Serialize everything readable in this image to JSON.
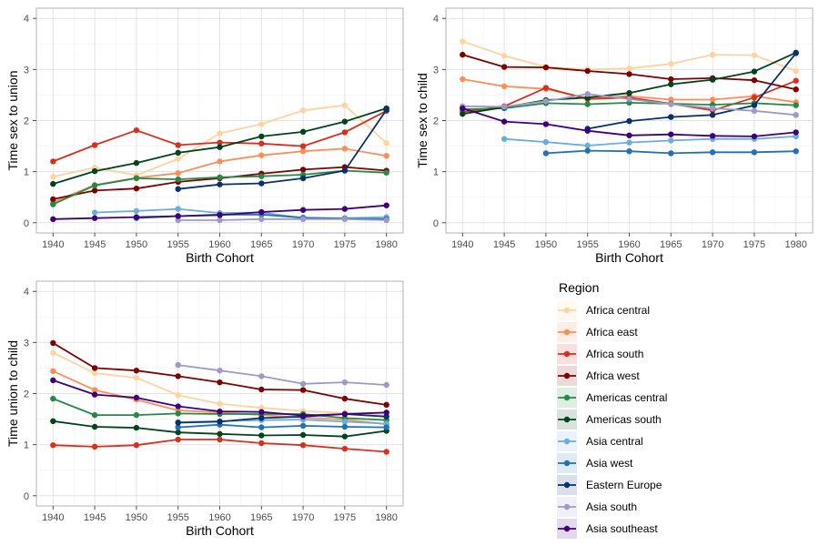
{
  "legend": {
    "title": "Region",
    "items": [
      {
        "name": "Africa central",
        "color": "#fdd49e"
      },
      {
        "name": "Africa east",
        "color": "#fc8d59"
      },
      {
        "name": "Africa south",
        "color": "#d7301f"
      },
      {
        "name": "Africa west",
        "color": "#7f0000"
      },
      {
        "name": "Americas central",
        "color": "#238b45"
      },
      {
        "name": "Americas south",
        "color": "#00441b"
      },
      {
        "name": "Asia central",
        "color": "#6baed6"
      },
      {
        "name": "Asia west",
        "color": "#2171b5"
      },
      {
        "name": "Eastern Europe",
        "color": "#08306b"
      },
      {
        "name": "Asia south",
        "color": "#9e9ac8"
      },
      {
        "name": "Asia southeast",
        "color": "#3f007d"
      }
    ]
  },
  "chart_data": [
    {
      "type": "line",
      "xlabel": "Birth Cohort",
      "ylabel": "Time sex to union",
      "xlim": [
        1938,
        1982
      ],
      "ylim": [
        -0.2,
        4.2
      ],
      "xticks": [
        "1940",
        "1945",
        "1950",
        "1955",
        "1960",
        "1965",
        "1970",
        "1975",
        "1980"
      ],
      "yticks": [
        "0",
        "1",
        "2",
        "3",
        "4"
      ],
      "grid": true,
      "series": [
        {
          "name": "Africa central",
          "x": [
            1940,
            1945,
            1950,
            1955,
            1960,
            1965,
            1970,
            1975,
            1980
          ],
          "y": [
            0.9,
            1.08,
            0.93,
            1.25,
            1.75,
            1.93,
            2.2,
            2.3,
            1.56
          ]
        },
        {
          "name": "Africa east",
          "x": [
            1940,
            1945,
            1950,
            1955,
            1960,
            1965,
            1970,
            1975,
            1980
          ],
          "y": [
            0.4,
            0.74,
            0.88,
            0.97,
            1.2,
            1.32,
            1.4,
            1.45,
            1.31
          ]
        },
        {
          "name": "Africa south",
          "x": [
            1940,
            1945,
            1950,
            1955,
            1960,
            1965,
            1970,
            1975,
            1980
          ],
          "y": [
            1.2,
            1.52,
            1.81,
            1.52,
            1.57,
            1.55,
            1.5,
            1.77,
            2.19
          ]
        },
        {
          "name": "Africa west",
          "x": [
            1940,
            1945,
            1950,
            1955,
            1960,
            1965,
            1970,
            1975,
            1980
          ],
          "y": [
            0.46,
            0.63,
            0.67,
            0.8,
            0.87,
            0.96,
            1.04,
            1.09,
            1.02
          ]
        },
        {
          "name": "Americas central",
          "x": [
            1940,
            1945,
            1950,
            1955,
            1960,
            1965,
            1970,
            1975,
            1980
          ],
          "y": [
            0.36,
            0.73,
            0.87,
            0.85,
            0.89,
            0.91,
            0.94,
            1.02,
            0.98
          ]
        },
        {
          "name": "Americas south",
          "x": [
            1940,
            1945,
            1950,
            1955,
            1960,
            1965,
            1970,
            1975,
            1980
          ],
          "y": [
            0.76,
            1.01,
            1.17,
            1.37,
            1.48,
            1.69,
            1.78,
            1.98,
            2.24
          ]
        },
        {
          "name": "Asia central",
          "x": [
            1945,
            1950,
            1955,
            1960,
            1965,
            1970,
            1975,
            1980
          ],
          "y": [
            0.2,
            0.23,
            0.27,
            0.19,
            0.2,
            0.09,
            0.09,
            0.11
          ]
        },
        {
          "name": "Asia west",
          "x": [
            1950,
            1955,
            1960,
            1965,
            1970,
            1975,
            1980
          ],
          "y": [
            0.09,
            0.13,
            0.16,
            0.16,
            0.1,
            0.08,
            0.07
          ]
        },
        {
          "name": "Eastern Europe",
          "x": [
            1955,
            1960,
            1965,
            1970,
            1975,
            1980
          ],
          "y": [
            0.66,
            0.75,
            0.77,
            0.87,
            1.02,
            2.21
          ]
        },
        {
          "name": "Asia south",
          "x": [
            1955,
            1960,
            1965,
            1970,
            1975,
            1980
          ],
          "y": [
            0.05,
            0.05,
            0.07,
            0.07,
            0.07,
            0.05
          ]
        },
        {
          "name": "Asia southeast",
          "x": [
            1940,
            1945,
            1950,
            1955,
            1960,
            1965,
            1970,
            1975,
            1980
          ],
          "y": [
            0.07,
            0.09,
            0.11,
            0.13,
            0.15,
            0.21,
            0.25,
            0.27,
            0.34
          ]
        }
      ]
    },
    {
      "type": "line",
      "xlabel": "Birth Cohort",
      "ylabel": "Time sex to child",
      "xlim": [
        1938,
        1982
      ],
      "ylim": [
        -0.2,
        4.2
      ],
      "xticks": [
        "1940",
        "1945",
        "1950",
        "1955",
        "1960",
        "1965",
        "1970",
        "1975",
        "1980"
      ],
      "yticks": [
        "0",
        "1",
        "2",
        "3",
        "4"
      ],
      "grid": true,
      "series": [
        {
          "name": "Africa central",
          "x": [
            1940,
            1945,
            1950,
            1955,
            1960,
            1965,
            1970,
            1975,
            1980
          ],
          "y": [
            3.55,
            3.27,
            3.05,
            3.0,
            3.02,
            3.11,
            3.29,
            3.28,
            2.97
          ]
        },
        {
          "name": "Africa east",
          "x": [
            1940,
            1945,
            1950,
            1955,
            1960,
            1965,
            1970,
            1975,
            1980
          ],
          "y": [
            2.81,
            2.67,
            2.62,
            2.44,
            2.48,
            2.41,
            2.41,
            2.48,
            2.36
          ]
        },
        {
          "name": "Africa south",
          "x": [
            1940,
            1945,
            1950,
            1955,
            1960,
            1965,
            1970,
            1975,
            1980
          ],
          "y": [
            2.17,
            2.28,
            2.64,
            2.42,
            2.45,
            2.33,
            2.2,
            2.45,
            2.78
          ]
        },
        {
          "name": "Africa west",
          "x": [
            1940,
            1945,
            1950,
            1955,
            1960,
            1965,
            1970,
            1975,
            1980
          ],
          "y": [
            3.29,
            3.05,
            3.04,
            2.97,
            2.91,
            2.81,
            2.83,
            2.79,
            2.61
          ]
        },
        {
          "name": "Americas central",
          "x": [
            1940,
            1945,
            1950,
            1955,
            1960,
            1965,
            1970,
            1975,
            1980
          ],
          "y": [
            2.22,
            2.24,
            2.34,
            2.32,
            2.35,
            2.33,
            2.31,
            2.34,
            2.3
          ]
        },
        {
          "name": "Americas south",
          "x": [
            1940,
            1945,
            1950,
            1955,
            1960,
            1965,
            1970,
            1975,
            1980
          ],
          "y": [
            2.13,
            2.26,
            2.4,
            2.45,
            2.54,
            2.71,
            2.8,
            2.96,
            3.33
          ]
        },
        {
          "name": "Asia central",
          "x": [
            1945,
            1950,
            1955,
            1960,
            1965,
            1970,
            1975,
            1980
          ],
          "y": [
            1.64,
            1.58,
            1.51,
            1.57,
            1.61,
            1.64,
            1.64,
            1.69
          ]
        },
        {
          "name": "Asia west",
          "x": [
            1950,
            1955,
            1960,
            1965,
            1970,
            1975,
            1980
          ],
          "y": [
            1.36,
            1.41,
            1.4,
            1.36,
            1.38,
            1.38,
            1.4
          ]
        },
        {
          "name": "Eastern Europe",
          "x": [
            1955,
            1960,
            1965,
            1970,
            1975,
            1980
          ],
          "y": [
            1.84,
            1.99,
            2.07,
            2.11,
            2.3,
            3.32
          ]
        },
        {
          "name": "Asia south",
          "x": [
            1940,
            1945,
            1950,
            1955,
            1960,
            1965,
            1970,
            1975,
            1980
          ],
          "y": [
            2.28,
            2.27,
            2.38,
            2.52,
            2.42,
            2.32,
            2.24,
            2.19,
            2.11
          ]
        },
        {
          "name": "Asia southeast",
          "x": [
            1940,
            1945,
            1950,
            1955,
            1960,
            1965,
            1970,
            1975,
            1980
          ],
          "y": [
            2.24,
            1.98,
            1.93,
            1.8,
            1.71,
            1.73,
            1.7,
            1.69,
            1.77
          ]
        }
      ]
    },
    {
      "type": "line",
      "xlabel": "Birth Cohort",
      "ylabel": "Time union to child",
      "xlim": [
        1938,
        1982
      ],
      "ylim": [
        -0.2,
        4.2
      ],
      "xticks": [
        "1940",
        "1945",
        "1950",
        "1955",
        "1960",
        "1965",
        "1970",
        "1975",
        "1980"
      ],
      "yticks": [
        "0",
        "1",
        "2",
        "3",
        "4"
      ],
      "grid": true,
      "series": [
        {
          "name": "Africa central",
          "x": [
            1940,
            1945,
            1950,
            1955,
            1960,
            1965,
            1970,
            1975,
            1980
          ],
          "y": [
            2.8,
            2.4,
            2.31,
            1.97,
            1.8,
            1.72,
            1.66,
            1.62,
            1.58
          ]
        },
        {
          "name": "Africa east",
          "x": [
            1940,
            1945,
            1950,
            1955,
            1960,
            1965,
            1970,
            1975,
            1980
          ],
          "y": [
            2.44,
            2.07,
            1.88,
            1.67,
            1.63,
            1.58,
            1.53,
            1.49,
            1.4
          ]
        },
        {
          "name": "Africa south",
          "x": [
            1940,
            1945,
            1950,
            1955,
            1960,
            1965,
            1970,
            1975,
            1980
          ],
          "y": [
            0.99,
            0.96,
            0.99,
            1.1,
            1.1,
            1.03,
            0.99,
            0.92,
            0.86
          ]
        },
        {
          "name": "Africa west",
          "x": [
            1940,
            1945,
            1950,
            1955,
            1960,
            1965,
            1970,
            1975,
            1980
          ],
          "y": [
            2.99,
            2.5,
            2.45,
            2.34,
            2.22,
            2.08,
            2.07,
            1.9,
            1.78
          ]
        },
        {
          "name": "Americas central",
          "x": [
            1940,
            1945,
            1950,
            1955,
            1960,
            1965,
            1970,
            1975,
            1980
          ],
          "y": [
            1.9,
            1.58,
            1.58,
            1.61,
            1.6,
            1.6,
            1.6,
            1.52,
            1.48
          ]
        },
        {
          "name": "Americas south",
          "x": [
            1940,
            1945,
            1950,
            1955,
            1960,
            1965,
            1970,
            1975,
            1980
          ],
          "y": [
            1.46,
            1.35,
            1.33,
            1.24,
            1.21,
            1.18,
            1.19,
            1.16,
            1.27
          ]
        },
        {
          "name": "Asia central",
          "x": [
            1955,
            1960,
            1965,
            1970,
            1975,
            1980
          ],
          "y": [
            1.44,
            1.46,
            1.48,
            1.49,
            1.45,
            1.41
          ]
        },
        {
          "name": "Asia west",
          "x": [
            1955,
            1960,
            1965,
            1970,
            1975,
            1980
          ],
          "y": [
            1.34,
            1.39,
            1.34,
            1.37,
            1.35,
            1.34
          ]
        },
        {
          "name": "Eastern Europe",
          "x": [
            1955,
            1960,
            1965,
            1970,
            1975,
            1980
          ],
          "y": [
            1.43,
            1.45,
            1.52,
            1.55,
            1.6,
            1.55
          ]
        },
        {
          "name": "Asia south",
          "x": [
            1955,
            1960,
            1965,
            1970,
            1975,
            1980
          ],
          "y": [
            2.56,
            2.45,
            2.34,
            2.19,
            2.22,
            2.17
          ]
        },
        {
          "name": "Asia southeast",
          "x": [
            1940,
            1945,
            1950,
            1955,
            1960,
            1965,
            1970,
            1975,
            1980
          ],
          "y": [
            2.26,
            1.98,
            1.92,
            1.75,
            1.65,
            1.64,
            1.57,
            1.6,
            1.63
          ]
        }
      ]
    }
  ]
}
